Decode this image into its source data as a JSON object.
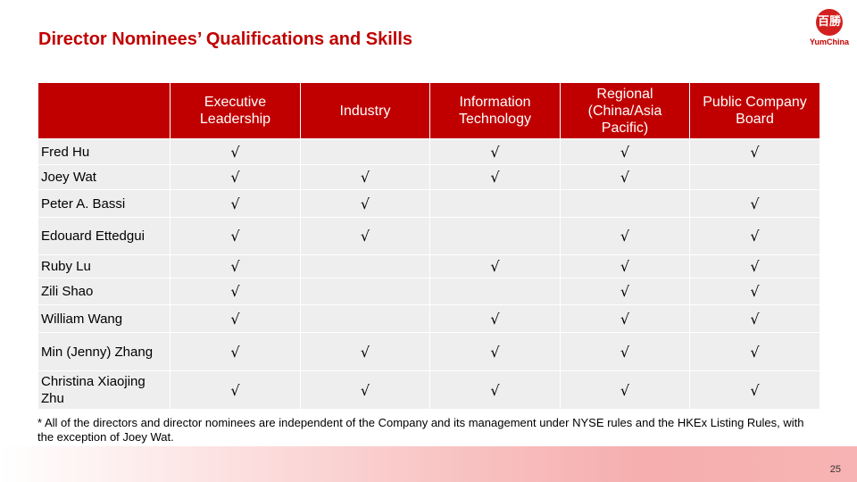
{
  "title": "Director Nominees’ Qualifications and Skills",
  "logo": {
    "glyph": "百勝",
    "text": "YumChina"
  },
  "table": {
    "headers": [
      "",
      "Executive Leadership",
      "Industry",
      "Information Technology",
      "Regional (China/Asia Pacific)",
      "Public Company Board"
    ],
    "rows": [
      {
        "name": "Fred Hu",
        "checks": [
          "√",
          "",
          "√",
          "√",
          "√"
        ]
      },
      {
        "name": "Joey Wat",
        "checks": [
          "√",
          "√",
          "√",
          "√",
          ""
        ]
      },
      {
        "name": "Peter A. Bassi",
        "checks": [
          "√",
          "√",
          "",
          "",
          "√"
        ]
      },
      {
        "name": "Edouard Ettedgui",
        "checks": [
          "√",
          "√",
          "",
          "√",
          "√"
        ]
      },
      {
        "name": "Ruby Lu",
        "checks": [
          "√",
          "",
          "√",
          "√",
          "√"
        ]
      },
      {
        "name": "Zili Shao",
        "checks": [
          "√",
          "",
          "",
          "√",
          "√"
        ]
      },
      {
        "name": "William Wang",
        "checks": [
          "√",
          "",
          "√",
          "√",
          "√"
        ]
      },
      {
        "name": "Min (Jenny) Zhang",
        "checks": [
          "√",
          "√",
          "√",
          "√",
          "√"
        ]
      },
      {
        "name": "Christina Xiaojing Zhu",
        "checks": [
          "√",
          "√",
          "√",
          "√",
          "√"
        ]
      }
    ]
  },
  "footnote": "* All of the directors and director nominees are independent of the Company and its management under NYSE rules and the HKEx Listing Rules, with the exception of Joey Wat.",
  "page_number": "25",
  "colors": {
    "accent": "#c00000",
    "row_bg": "#eeeeee"
  }
}
